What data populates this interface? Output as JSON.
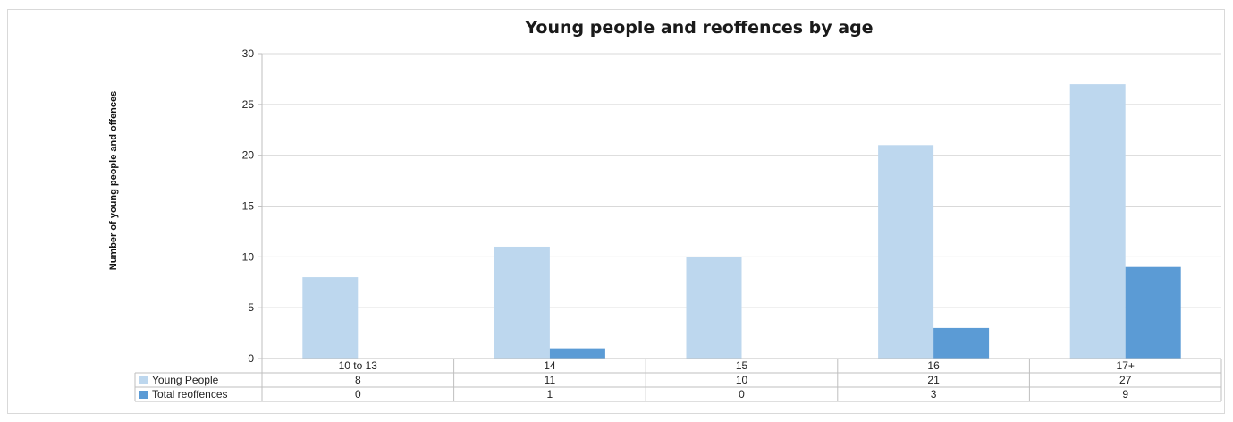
{
  "chart_data": {
    "type": "bar",
    "title": "Young people and reoffences by age",
    "ylabel": "Number of young people and offences",
    "xlabel": "",
    "categories": [
      "10 to 13",
      "14",
      "15",
      "16",
      "17+"
    ],
    "series": [
      {
        "name": "Young People",
        "values": [
          8,
          11,
          10,
          21,
          27
        ],
        "color": "#bdd7ee",
        "value_labels": [
          "8",
          "11",
          "10",
          "21",
          "27"
        ]
      },
      {
        "name": "Total reoffences",
        "values": [
          0,
          1,
          0,
          3,
          9
        ],
        "color": "#5b9bd5",
        "value_labels": [
          "0",
          "1",
          "0",
          "3",
          "9"
        ]
      }
    ],
    "ylim": [
      0,
      30
    ],
    "yticks": [
      "0",
      "5",
      "10",
      "15",
      "20",
      "25",
      "30"
    ],
    "grid": true,
    "legend": "data-table"
  }
}
